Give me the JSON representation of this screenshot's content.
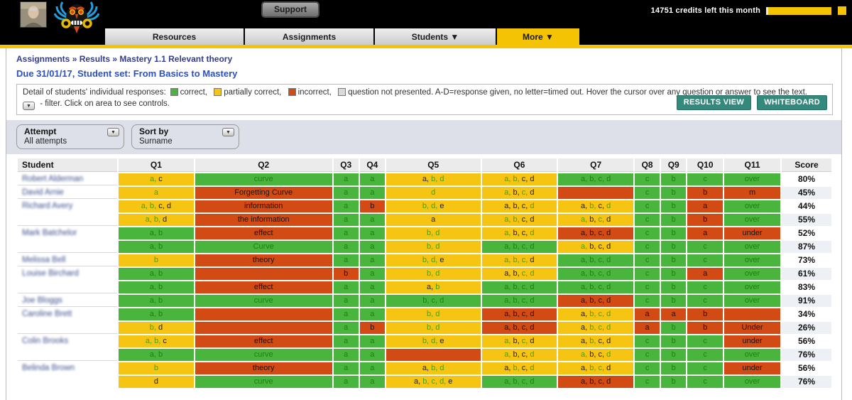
{
  "topbar": {
    "support_label": "Support",
    "credits_text": "14751 credits left this month"
  },
  "nav": {
    "tabs": [
      {
        "label": "Resources",
        "active": false
      },
      {
        "label": "Assignments",
        "active": false
      },
      {
        "label": "Students ▼",
        "active": false
      },
      {
        "label": "More ▼",
        "active": true
      }
    ]
  },
  "breadcrumb": {
    "parts": [
      "Assignments",
      "Results",
      "Mastery 1.1 Relevant theory"
    ],
    "separator": "»"
  },
  "subtitle": "Due 31/01/17, Student set: From Basics to Mastery",
  "legend": {
    "prefix": "Detail of students' individual responses:",
    "items": [
      {
        "label": "correct",
        "color": "#4ab53d"
      },
      {
        "label": "partially correct",
        "color": "#f6c513"
      },
      {
        "label": "incorrect",
        "color": "#d24b15"
      },
      {
        "label": "question not presented",
        "color": "#d9d9d9"
      }
    ],
    "suffix": "A-D=response given, no letter=timed out. Hover the cursor over any question or answer to see the text.",
    "filter_note": "- filter. Click on area to see controls.",
    "buttons": [
      "RESULTS VIEW",
      "WHITEBOARD"
    ]
  },
  "filters": [
    {
      "label": "Attempt",
      "value": "All attempts"
    },
    {
      "label": "Sort by",
      "value": "Surname"
    }
  ],
  "table": {
    "columns": [
      "Student",
      "Q1",
      "Q2",
      "Q3",
      "Q4",
      "Q5",
      "Q6",
      "Q7",
      "Q8",
      "Q9",
      "Q10",
      "Q11",
      "Score"
    ],
    "cell_format": "first token = cell background (G=correct, Y=partially correct, R=incorrect); remaining tokens are shown answers, .g = green letter, .k = dark letter, ~ = space",
    "rows": [
      {
        "student": "Robert Alderman",
        "score": "80%",
        "cells": [
          "Y a.g c.k",
          "G curve.g",
          "G a.g",
          "G a.g",
          "Y a.k b.g d.g",
          "Y a.g b.g c.k d.k",
          "G a.g b.g c.g d.g",
          "G c.g",
          "G b.g",
          "G c.g",
          "G over.g"
        ]
      },
      {
        "student": "David Arnie",
        "score": "45%",
        "cells": [
          "Y a.g",
          "R Forgetting~Curve.k",
          "G a.g",
          "G a.g",
          "Y d.g",
          "Y a.g b.k c.g d.k",
          "R",
          "G c.g",
          "G b.g",
          "R b.k",
          "R m.k"
        ]
      },
      {
        "student": "Richard Avery",
        "score": "44%",
        "cells": [
          "Y a.g b.g c.k d.k",
          "R information.k",
          "G a.g",
          "R b.k",
          "Y b.g d.g e.k",
          "Y a.k b.k c.k d.g",
          "Y a.k b.g c.k d.g",
          "G c.g",
          "G b.g",
          "R a.k",
          "G over.g"
        ]
      },
      {
        "student": "",
        "score": "55%",
        "cells": [
          "Y a.g b.g d.k",
          "R the~information.k",
          "G a.g",
          "G a.g",
          "Y a.k",
          "Y a.g b.g c.k d.k",
          "Y a.g b.k c.g d.k",
          "G c.g",
          "G b.g",
          "R b.k",
          "G over.g"
        ]
      },
      {
        "student": "Mark Batchelor",
        "score": "52%",
        "cells": [
          "G a.g b.g",
          "R effect.k",
          "G a.g",
          "G a.g",
          "Y b.g d.g",
          "Y a.g b.k c.k d.g",
          "R a.k b.k c.k d.k",
          "G c.g",
          "G b.g",
          "R a.k",
          "R under.k"
        ]
      },
      {
        "student": "",
        "score": "87%",
        "cells": [
          "G a.g b.g",
          "G Curve.g",
          "G a.g",
          "G a.g",
          "Y b.g d.g",
          "G a.g b.g c.g d.g",
          "Y a.g b.k c.k d.k",
          "G c.g",
          "G b.g",
          "G c.g",
          "G over.g"
        ]
      },
      {
        "student": "Melissa Bell",
        "score": "73%",
        "cells": [
          "Y b.g",
          "R theory.k",
          "G a.g",
          "G a.g",
          "Y b.g d.g e.k",
          "Y a.g b.g c.g d.k",
          "G a.g b.g c.g d.g",
          "G c.g",
          "G b.g",
          "G c.g",
          "G over.g"
        ]
      },
      {
        "student": "Louise Birchard",
        "score": "61%",
        "cells": [
          "G a.g b.g",
          "R",
          "R b.k",
          "G a.g",
          "Y b.g d.g",
          "Y a.k b.k c.g d.g",
          "G a.g b.g c.g d.g",
          "G c.g",
          "G b.g",
          "R a.k",
          "G over.g"
        ]
      },
      {
        "student": "",
        "score": "83%",
        "cells": [
          "G a.g b.g",
          "R effect.k",
          "G a.g",
          "G a.g",
          "Y a.k b.g",
          "G a.g b.g c.g d.g",
          "G a.g b.g c.g d.g",
          "G c.g",
          "G b.g",
          "G c.g",
          "G over.g"
        ]
      },
      {
        "student": "Joe Bloggs",
        "score": "91%",
        "cells": [
          "G a.g b.g",
          "G curve.g",
          "G a.g",
          "G a.g",
          "G b.g c.g d.g",
          "G a.g b.g c.g d.g",
          "R a.k b.k c.k d.k",
          "G c.g",
          "G b.g",
          "G c.g",
          "G over.g"
        ]
      },
      {
        "student": "Caroline Brett",
        "score": "34%",
        "cells": [
          "G a.g b.g",
          "R",
          "G a.g",
          "G a.g",
          "Y b.g d.g",
          "R a.k b.k c.k d.k",
          "Y a.k b.g c.g d.g",
          "R a.k",
          "R a.k",
          "R b.k",
          "R"
        ]
      },
      {
        "student": "",
        "score": "26%",
        "cells": [
          "Y b.g d.k",
          "R",
          "G a.g",
          "R b.k",
          "Y b.g d.g",
          "R a.k b.k c.k d.k",
          "Y a.k b.g c.g d.g",
          "R a.k",
          "G b.g",
          "R b.k",
          "R Under.k"
        ]
      },
      {
        "student": "Colin Brooks",
        "score": "56%",
        "cells": [
          "Y a.g b.g c.k",
          "R effect.k",
          "G a.g",
          "G a.g",
          "Y b.g d.g e.k",
          "Y a.g b.k c.g d.k",
          "Y a.k b.g c.k d.k",
          "G c.g",
          "G b.g",
          "G c.g",
          "R under.k"
        ]
      },
      {
        "student": "",
        "score": "76%",
        "cells": [
          "G a.g b.g",
          "G curve.g",
          "G a.g",
          "G a.g",
          "R",
          "Y a.g b.k c.k d.g",
          "Y a.g b.k c.k d.g",
          "G c.g",
          "G b.g",
          "G c.g",
          "G over.g"
        ]
      },
      {
        "student": "Belinda Brown",
        "score": "56%",
        "cells": [
          "Y b.g",
          "R theory.k",
          "G a.g",
          "G a.g",
          "Y a.k b.g d.g",
          "Y a.k b.g c.k d.g",
          "Y a.k b.g c.g d.k",
          "G c.g",
          "G b.g",
          "G c.g",
          "R under.k"
        ]
      },
      {
        "student": "",
        "score": "76%",
        "cells": [
          "Y d.k",
          "G curve.g",
          "G a.g",
          "G a.g",
          "Y a.k b.g c.g d.g e.k",
          "G a.g b.g c.g d.g",
          "R a.k b.k c.k d.k",
          "G c.g",
          "G b.g",
          "G c.g",
          "G over.g"
        ]
      }
    ]
  }
}
